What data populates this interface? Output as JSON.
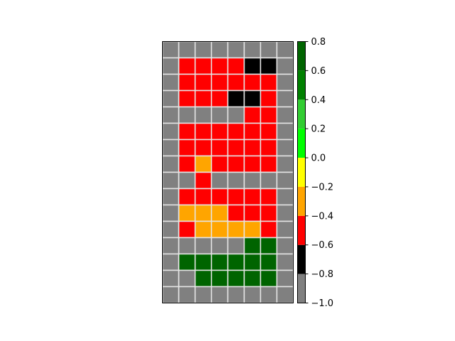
{
  "chart_data": {
    "type": "heatmap",
    "title": "",
    "xlabel": "",
    "ylabel": "",
    "grid": true,
    "grid_color": "#e6e6e6",
    "legend": "colorbar-right",
    "n_rows": 16,
    "n_cols": 8,
    "values": [
      [
        -0.9,
        -0.9,
        -0.9,
        -0.9,
        -0.9,
        -0.9,
        -0.9,
        -0.9
      ],
      [
        -0.9,
        -0.5,
        -0.5,
        -0.5,
        -0.5,
        -0.7,
        -0.7,
        -0.9
      ],
      [
        -0.9,
        -0.5,
        -0.5,
        -0.5,
        -0.5,
        -0.5,
        -0.5,
        -0.9
      ],
      [
        -0.9,
        -0.5,
        -0.5,
        -0.5,
        -0.7,
        -0.7,
        -0.5,
        -0.9
      ],
      [
        -0.9,
        -0.9,
        -0.9,
        -0.9,
        -0.9,
        -0.5,
        -0.5,
        -0.9
      ],
      [
        -0.9,
        -0.5,
        -0.5,
        -0.5,
        -0.5,
        -0.5,
        -0.5,
        -0.9
      ],
      [
        -0.9,
        -0.5,
        -0.5,
        -0.5,
        -0.5,
        -0.5,
        -0.5,
        -0.9
      ],
      [
        -0.9,
        -0.5,
        -0.3,
        -0.5,
        -0.5,
        -0.5,
        -0.5,
        -0.9
      ],
      [
        -0.9,
        -0.9,
        -0.5,
        -0.9,
        -0.9,
        -0.9,
        -0.9,
        -0.9
      ],
      [
        -0.9,
        -0.5,
        -0.5,
        -0.5,
        -0.5,
        -0.5,
        -0.5,
        -0.9
      ],
      [
        -0.9,
        -0.3,
        -0.3,
        -0.3,
        -0.5,
        -0.5,
        -0.5,
        -0.9
      ],
      [
        -0.9,
        -0.5,
        -0.3,
        -0.3,
        -0.3,
        -0.3,
        -0.5,
        -0.9
      ],
      [
        -0.9,
        -0.9,
        -0.9,
        -0.9,
        -0.9,
        0.7,
        0.7,
        -0.9
      ],
      [
        -0.9,
        0.7,
        0.7,
        0.7,
        0.7,
        0.7,
        0.7,
        -0.9
      ],
      [
        -0.9,
        -0.9,
        0.7,
        0.7,
        0.7,
        0.7,
        0.7,
        -0.9
      ],
      [
        -0.9,
        -0.9,
        -0.9,
        -0.9,
        -0.9,
        -0.9,
        -0.9,
        -0.9
      ]
    ],
    "colorbar": {
      "range": [
        -1.0,
        0.8
      ],
      "bins": [
        {
          "from": -1.0,
          "to": -0.8,
          "color": "#808080"
        },
        {
          "from": -0.8,
          "to": -0.6,
          "color": "#000000"
        },
        {
          "from": -0.6,
          "to": -0.4,
          "color": "#ff0000"
        },
        {
          "from": -0.4,
          "to": -0.2,
          "color": "#ffa500"
        },
        {
          "from": -0.2,
          "to": 0.0,
          "color": "#ffff00"
        },
        {
          "from": 0.0,
          "to": 0.2,
          "color": "#00ff00"
        },
        {
          "from": 0.2,
          "to": 0.4,
          "color": "#32cd32"
        },
        {
          "from": 0.4,
          "to": 0.6,
          "color": "#008000"
        },
        {
          "from": 0.6,
          "to": 0.8,
          "color": "#006400"
        }
      ],
      "ticks": [
        {
          "value": 0.8,
          "label": "0.8"
        },
        {
          "value": 0.6,
          "label": "0.6"
        },
        {
          "value": 0.4,
          "label": "0.4"
        },
        {
          "value": 0.2,
          "label": "0.2"
        },
        {
          "value": 0.0,
          "label": "0.0"
        },
        {
          "value": -0.2,
          "label": "−0.2"
        },
        {
          "value": -0.4,
          "label": "−0.4"
        },
        {
          "value": -0.6,
          "label": "−0.6"
        },
        {
          "value": -0.8,
          "label": "−0.8"
        },
        {
          "value": -1.0,
          "label": "−1.0"
        }
      ]
    }
  }
}
